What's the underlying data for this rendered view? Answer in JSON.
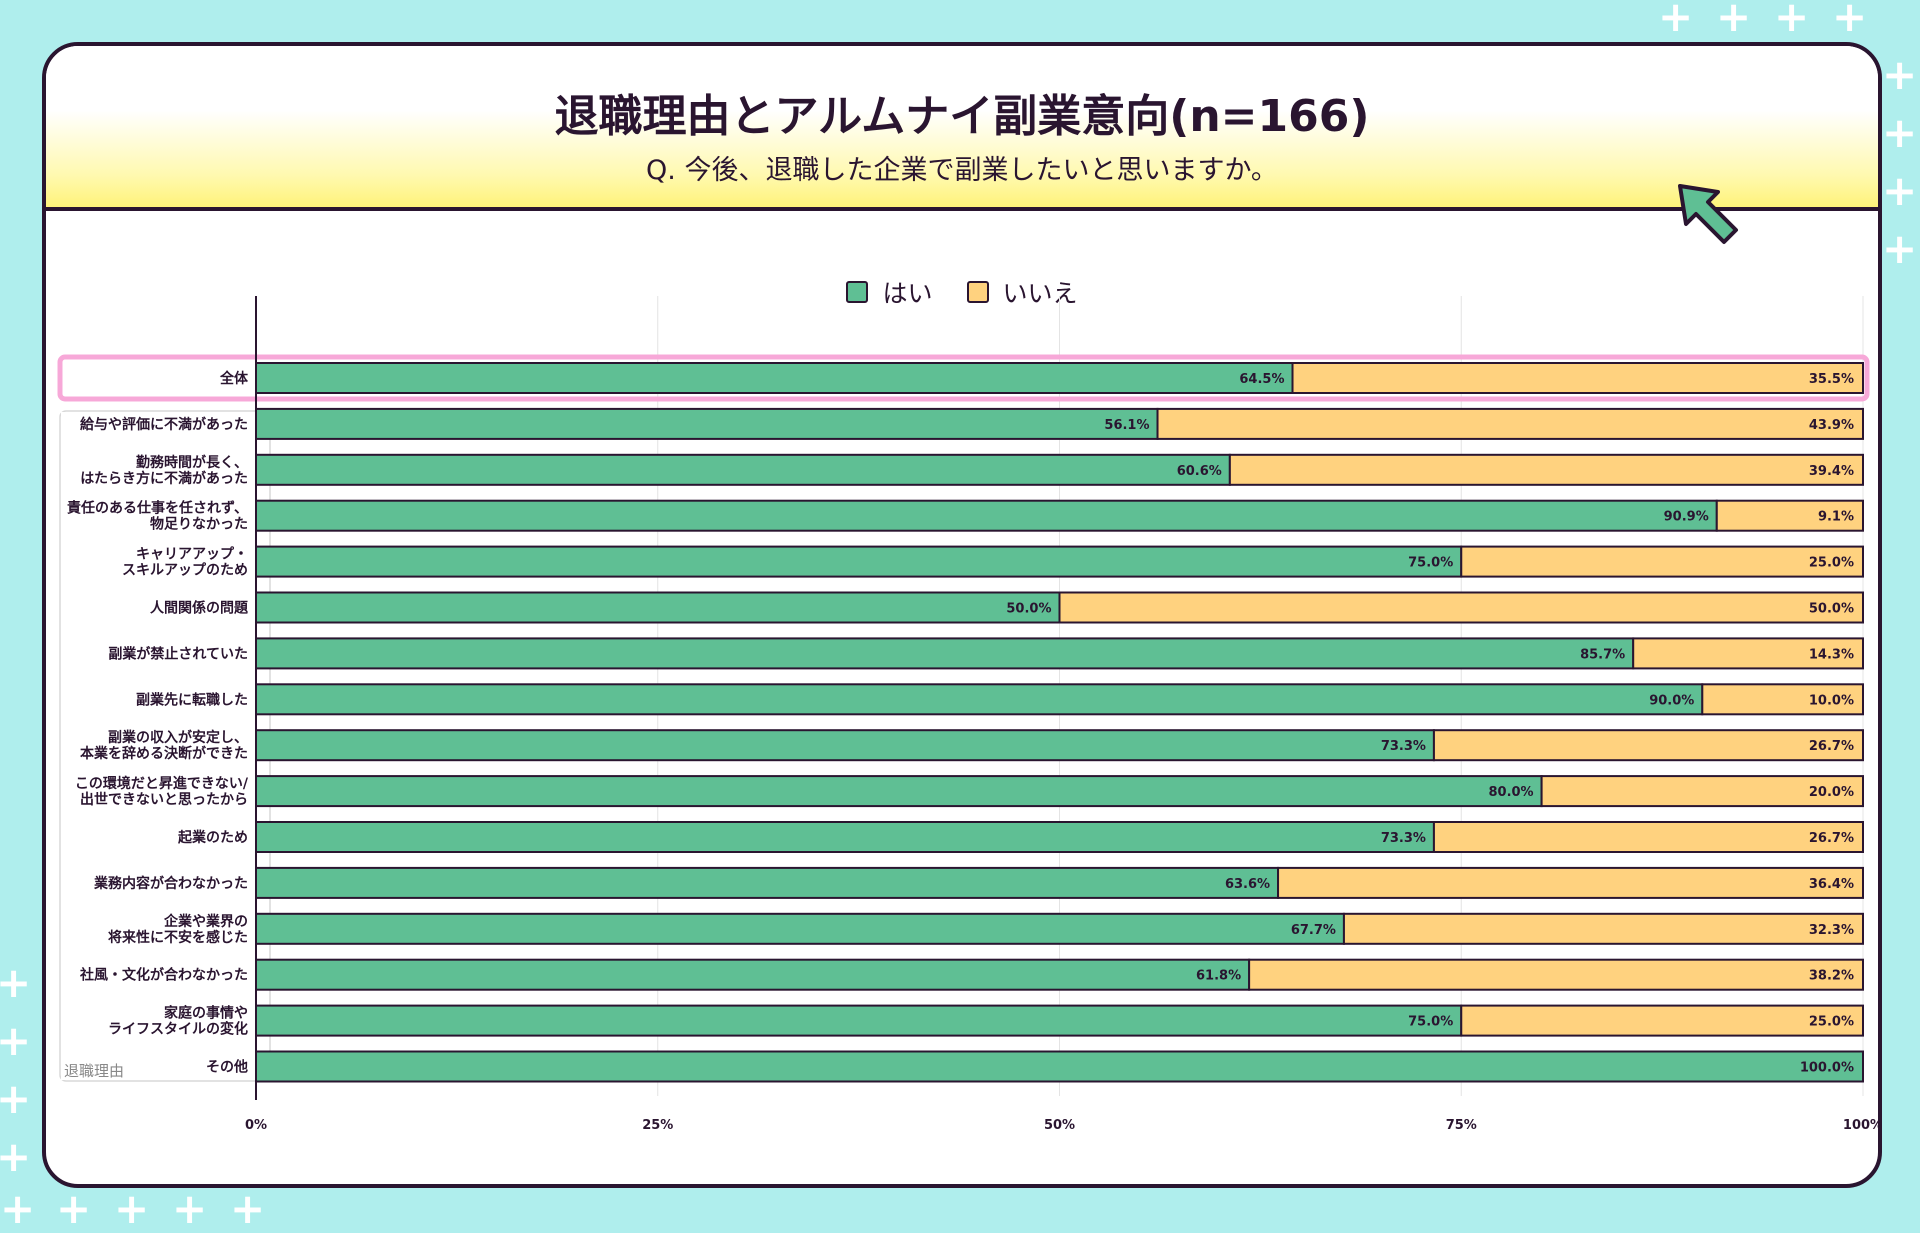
{
  "header": {
    "title": "退職理由とアルムナイ副業意向(n=166)",
    "subtitle": "Q. 今後、退職した企業で副業したいと思いますか。"
  },
  "group_label": "退職理由",
  "colors": {
    "yes": "#5fbf94",
    "no": "#ffd27f",
    "outline": "#2a1530",
    "highlight": "#f7a8d8"
  },
  "chart_data": {
    "type": "bar",
    "orientation": "horizontal",
    "stacked": true,
    "percent_stacked": true,
    "legend_position": "top",
    "categories": [
      "全体",
      "給与や評価に不満があった",
      "勤務時間が長く、\nはたらき方に不満があった",
      "責任のある仕事を任されず、\n物足りなかった",
      "キャリアアップ・\nスキルアップのため",
      "人間関係の問題",
      "副業が禁止されていた",
      "副業先に転職した",
      "副業の収入が安定し、\n本業を辞める決断ができた",
      "この環境だと昇進できない/\n出世できないと思ったから",
      "起業のため",
      "業務内容が合わなかった",
      "企業や業界の\n将来性に不安を感じた",
      "社風・文化が合わなかった",
      "家庭の事情や\nライフスタイルの変化",
      "その他"
    ],
    "series": [
      {
        "name": "はい",
        "values": [
          64.5,
          56.1,
          60.6,
          90.9,
          75.0,
          50.0,
          85.7,
          90.0,
          73.3,
          80.0,
          73.3,
          63.6,
          67.7,
          61.8,
          75.0,
          100.0
        ]
      },
      {
        "name": "いいえ",
        "values": [
          35.5,
          43.9,
          39.4,
          9.1,
          25.0,
          50.0,
          14.3,
          10.0,
          26.7,
          20.0,
          26.7,
          36.4,
          32.3,
          38.2,
          25.0,
          0
        ]
      }
    ],
    "data_labels": [
      [
        "64.5%",
        "56.1%",
        "60.6%",
        "90.9%",
        "75.0%",
        "50.0%",
        "85.7%",
        "90.0%",
        "73.3%",
        "80.0%",
        "73.3%",
        "63.6%",
        "67.7%",
        "61.8%",
        "75.0%",
        "100.0%"
      ],
      [
        "35.5%",
        "43.9%",
        "39.4%",
        "9.1%",
        "25.0%",
        "50.0%",
        "14.3%",
        "10.0%",
        "26.7%",
        "20.0%",
        "26.7%",
        "36.4%",
        "32.3%",
        "38.2%",
        "25.0%",
        ""
      ]
    ],
    "x_ticks": [
      "0%",
      "25%",
      "50%",
      "75%",
      "100%"
    ],
    "xlim": [
      0,
      100
    ],
    "grid": true
  }
}
